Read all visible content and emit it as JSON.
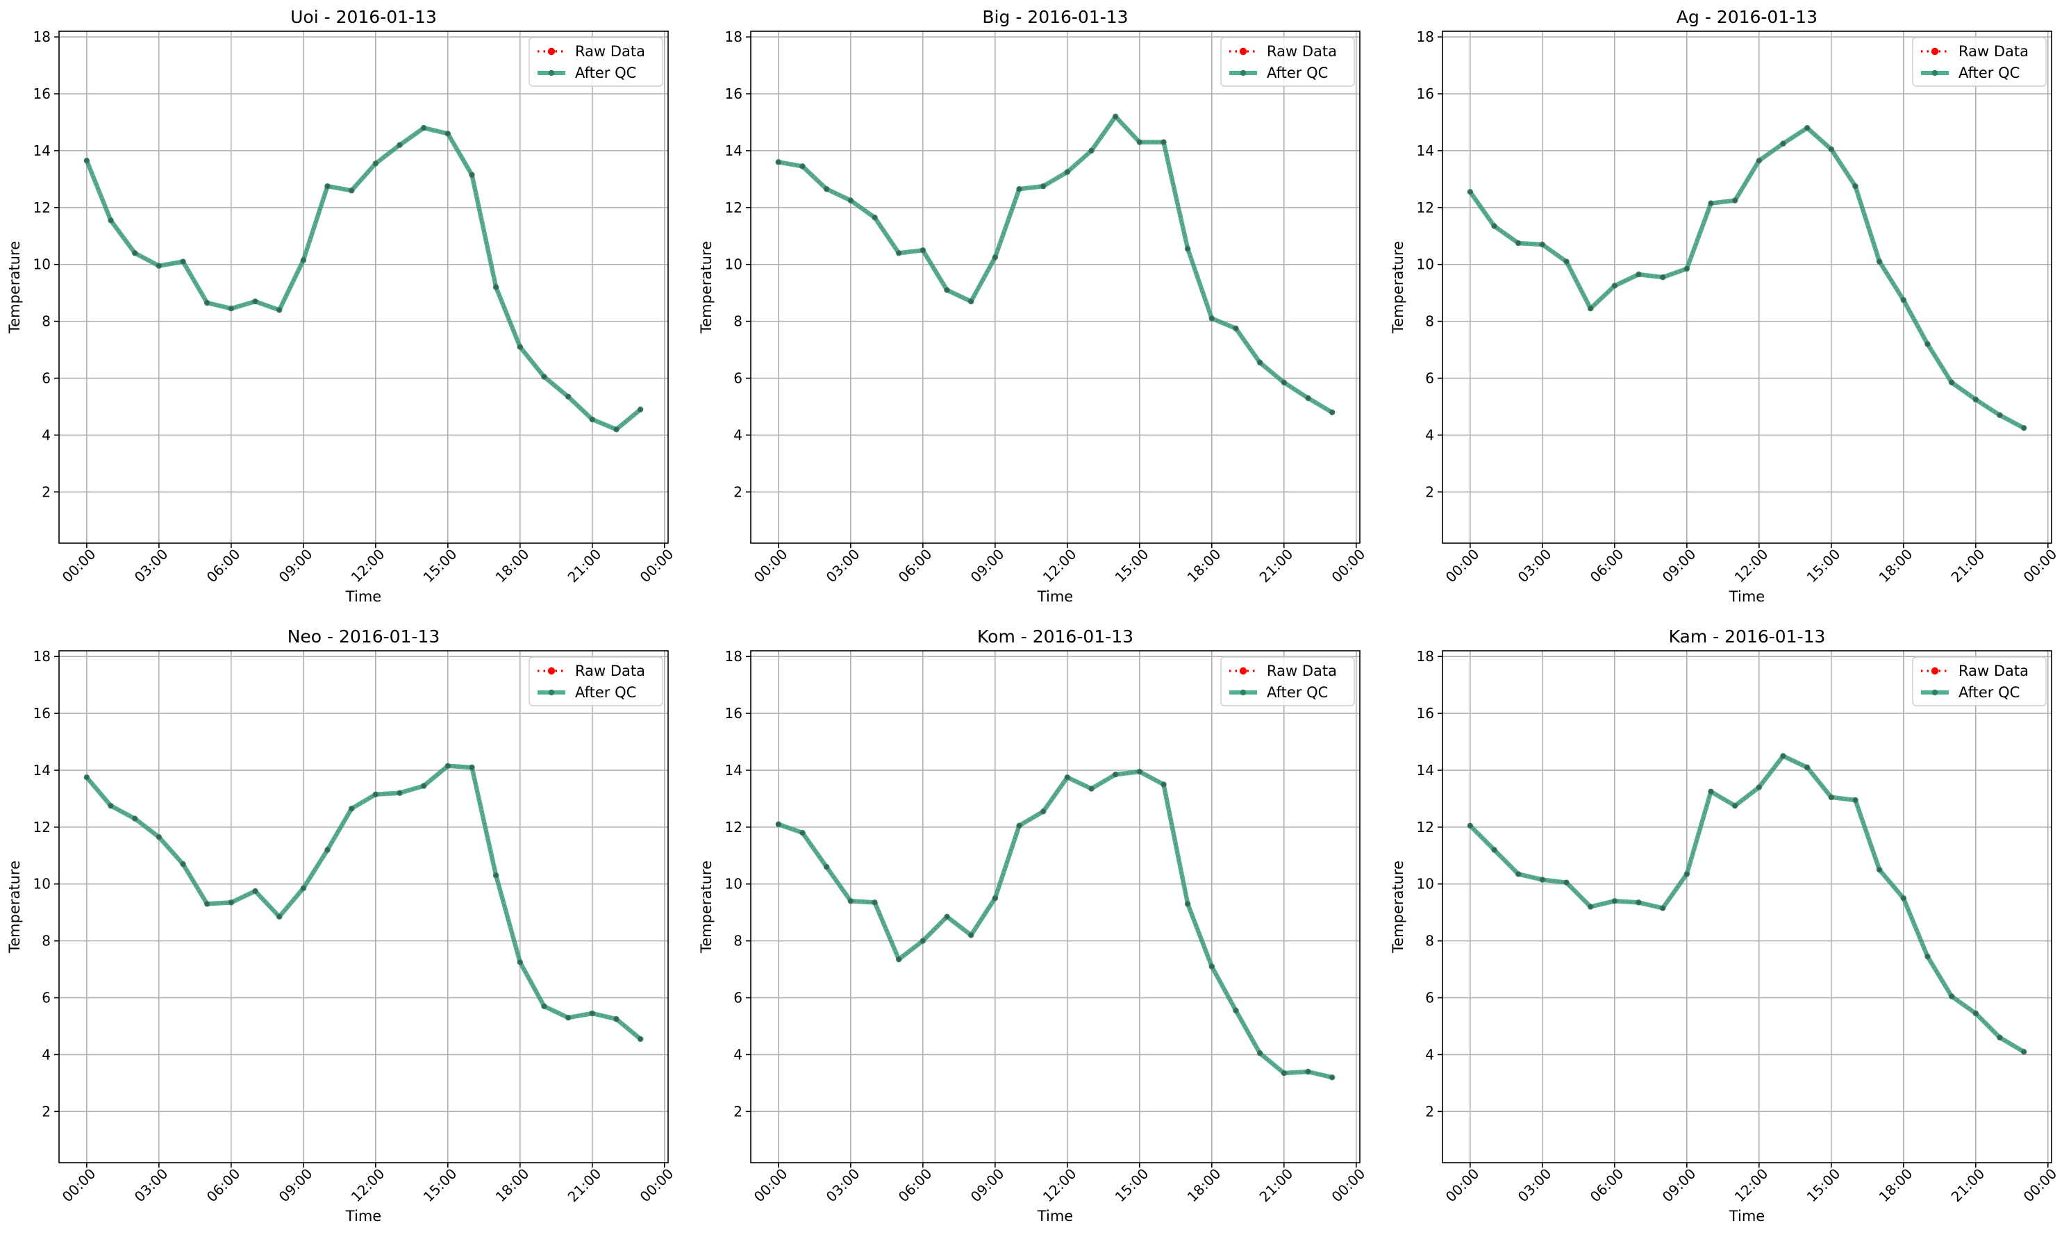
{
  "chart_data": [
    {
      "type": "line",
      "title": "Uoi - 2016-01-13",
      "xlabel": "Time",
      "ylabel": "Temperature",
      "ylim": [
        0.2,
        18.2
      ],
      "yticks": [
        2,
        4,
        6,
        8,
        10,
        12,
        14,
        16,
        18
      ],
      "xlim": [
        -1.15,
        24.15
      ],
      "xticks": [
        0,
        3,
        6,
        9,
        12,
        15,
        18,
        21,
        24
      ],
      "xtick_labels": [
        "00:00",
        "03:00",
        "06:00",
        "09:00",
        "12:00",
        "15:00",
        "18:00",
        "21:00",
        "00:00"
      ],
      "x": [
        0,
        1,
        2,
        3,
        4,
        5,
        6,
        7,
        8,
        9,
        10,
        11,
        12,
        13,
        14,
        15,
        16,
        17,
        18,
        19,
        20,
        21,
        22,
        23
      ],
      "x_unit": "hour of 2016-01-13",
      "grid": true,
      "legend": "upper right",
      "series": [
        {
          "name": "Raw Data",
          "color": "#ff0000",
          "style": "dotted",
          "values": [
            13.65,
            11.55,
            10.4,
            9.95,
            10.1,
            8.65,
            8.45,
            8.7,
            8.4,
            10.15,
            12.75,
            12.6,
            13.55,
            14.2,
            14.8,
            14.6,
            13.15,
            9.2,
            7.1,
            6.05,
            5.35,
            4.55,
            4.2,
            4.9
          ]
        },
        {
          "name": "After QC",
          "color": "#2a9d7a",
          "style": "solid",
          "values": [
            13.65,
            11.55,
            10.4,
            9.95,
            10.1,
            8.65,
            8.45,
            8.7,
            8.4,
            10.15,
            12.75,
            12.6,
            13.55,
            14.2,
            14.8,
            14.6,
            13.15,
            9.2,
            7.1,
            6.05,
            5.35,
            4.55,
            4.2,
            4.9
          ]
        }
      ]
    },
    {
      "type": "line",
      "title": "Big - 2016-01-13",
      "xlabel": "Time",
      "ylabel": "Temperature",
      "ylim": [
        0.2,
        18.2
      ],
      "yticks": [
        2,
        4,
        6,
        8,
        10,
        12,
        14,
        16,
        18
      ],
      "xlim": [
        -1.15,
        24.15
      ],
      "xticks": [
        0,
        3,
        6,
        9,
        12,
        15,
        18,
        21,
        24
      ],
      "xtick_labels": [
        "00:00",
        "03:00",
        "06:00",
        "09:00",
        "12:00",
        "15:00",
        "18:00",
        "21:00",
        "00:00"
      ],
      "x": [
        0,
        1,
        2,
        3,
        4,
        5,
        6,
        7,
        8,
        9,
        10,
        11,
        12,
        13,
        14,
        15,
        16,
        17,
        18,
        19,
        20,
        21,
        22,
        23
      ],
      "x_unit": "hour of 2016-01-13",
      "grid": true,
      "legend": "upper right",
      "series": [
        {
          "name": "Raw Data",
          "color": "#ff0000",
          "style": "dotted",
          "values": [
            13.6,
            13.45,
            12.65,
            12.25,
            11.65,
            10.4,
            10.5,
            9.1,
            8.7,
            10.25,
            12.65,
            12.75,
            13.25,
            14.0,
            15.2,
            14.3,
            14.3,
            10.55,
            8.1,
            7.75,
            6.55,
            5.85,
            5.3,
            4.8
          ]
        },
        {
          "name": "After QC",
          "color": "#2a9d7a",
          "style": "solid",
          "values": [
            13.6,
            13.45,
            12.65,
            12.25,
            11.65,
            10.4,
            10.5,
            9.1,
            8.7,
            10.25,
            12.65,
            12.75,
            13.25,
            14.0,
            15.2,
            14.3,
            14.3,
            10.55,
            8.1,
            7.75,
            6.55,
            5.85,
            5.3,
            4.8
          ]
        }
      ]
    },
    {
      "type": "line",
      "title": "Ag - 2016-01-13",
      "xlabel": "Time",
      "ylabel": "Temperature",
      "ylim": [
        0.2,
        18.2
      ],
      "yticks": [
        2,
        4,
        6,
        8,
        10,
        12,
        14,
        16,
        18
      ],
      "xlim": [
        -1.15,
        24.15
      ],
      "xticks": [
        0,
        3,
        6,
        9,
        12,
        15,
        18,
        21,
        24
      ],
      "xtick_labels": [
        "00:00",
        "03:00",
        "06:00",
        "09:00",
        "12:00",
        "15:00",
        "18:00",
        "21:00",
        "00:00"
      ],
      "x": [
        0,
        1,
        2,
        3,
        4,
        5,
        6,
        7,
        8,
        9,
        10,
        11,
        12,
        13,
        14,
        15,
        16,
        17,
        18,
        19,
        20,
        21,
        22,
        23
      ],
      "x_unit": "hour of 2016-01-13",
      "grid": true,
      "legend": "upper right",
      "series": [
        {
          "name": "Raw Data",
          "color": "#ff0000",
          "style": "dotted",
          "values": [
            12.55,
            11.35,
            10.75,
            10.7,
            10.1,
            8.45,
            9.25,
            9.65,
            9.55,
            9.85,
            12.15,
            12.25,
            13.65,
            14.25,
            14.8,
            14.05,
            12.75,
            10.1,
            8.75,
            7.2,
            5.85,
            5.25,
            4.7,
            4.25
          ]
        },
        {
          "name": "After QC",
          "color": "#2a9d7a",
          "style": "solid",
          "values": [
            12.55,
            11.35,
            10.75,
            10.7,
            10.1,
            8.45,
            9.25,
            9.65,
            9.55,
            9.85,
            12.15,
            12.25,
            13.65,
            14.25,
            14.8,
            14.05,
            12.75,
            10.1,
            8.75,
            7.2,
            5.85,
            5.25,
            4.7,
            4.25
          ]
        }
      ]
    },
    {
      "type": "line",
      "title": "Neo - 2016-01-13",
      "xlabel": "Time",
      "ylabel": "Temperature",
      "ylim": [
        0.2,
        18.2
      ],
      "yticks": [
        2,
        4,
        6,
        8,
        10,
        12,
        14,
        16,
        18
      ],
      "xlim": [
        -1.15,
        24.15
      ],
      "xticks": [
        0,
        3,
        6,
        9,
        12,
        15,
        18,
        21,
        24
      ],
      "xtick_labels": [
        "00:00",
        "03:00",
        "06:00",
        "09:00",
        "12:00",
        "15:00",
        "18:00",
        "21:00",
        "00:00"
      ],
      "x": [
        0,
        1,
        2,
        3,
        4,
        5,
        6,
        7,
        8,
        9,
        10,
        11,
        12,
        13,
        14,
        15,
        16,
        17,
        18,
        19,
        20,
        21,
        22,
        23
      ],
      "x_unit": "hour of 2016-01-13",
      "grid": true,
      "legend": "upper right",
      "series": [
        {
          "name": "Raw Data",
          "color": "#ff0000",
          "style": "dotted",
          "values": [
            13.75,
            12.75,
            12.3,
            11.65,
            10.7,
            9.3,
            9.35,
            9.75,
            8.85,
            9.85,
            11.2,
            12.65,
            13.15,
            13.2,
            13.45,
            14.15,
            14.1,
            10.3,
            7.25,
            5.7,
            5.3,
            5.45,
            5.25,
            4.55
          ]
        },
        {
          "name": "After QC",
          "color": "#2a9d7a",
          "style": "solid",
          "values": [
            13.75,
            12.75,
            12.3,
            11.65,
            10.7,
            9.3,
            9.35,
            9.75,
            8.85,
            9.85,
            11.2,
            12.65,
            13.15,
            13.2,
            13.45,
            14.15,
            14.1,
            10.3,
            7.25,
            5.7,
            5.3,
            5.45,
            5.25,
            4.55
          ]
        }
      ]
    },
    {
      "type": "line",
      "title": "Kom - 2016-01-13",
      "xlabel": "Time",
      "ylabel": "Temperature",
      "ylim": [
        0.2,
        18.2
      ],
      "yticks": [
        2,
        4,
        6,
        8,
        10,
        12,
        14,
        16,
        18
      ],
      "xlim": [
        -1.15,
        24.15
      ],
      "xticks": [
        0,
        3,
        6,
        9,
        12,
        15,
        18,
        21,
        24
      ],
      "xtick_labels": [
        "00:00",
        "03:00",
        "06:00",
        "09:00",
        "12:00",
        "15:00",
        "18:00",
        "21:00",
        "00:00"
      ],
      "x": [
        0,
        1,
        2,
        3,
        4,
        5,
        6,
        7,
        8,
        9,
        10,
        11,
        12,
        13,
        14,
        15,
        16,
        17,
        18,
        19,
        20,
        21,
        22,
        23
      ],
      "x_unit": "hour of 2016-01-13",
      "grid": true,
      "legend": "upper right",
      "series": [
        {
          "name": "Raw Data",
          "color": "#ff0000",
          "style": "dotted",
          "values": [
            12.1,
            11.8,
            10.6,
            9.4,
            9.35,
            7.35,
            8.0,
            8.85,
            8.2,
            9.5,
            12.05,
            12.55,
            13.75,
            13.35,
            13.85,
            13.95,
            13.5,
            9.3,
            7.1,
            5.55,
            4.05,
            3.35,
            3.4,
            3.2
          ]
        },
        {
          "name": "After QC",
          "color": "#2a9d7a",
          "style": "solid",
          "values": [
            12.1,
            11.8,
            10.6,
            9.4,
            9.35,
            7.35,
            8.0,
            8.85,
            8.2,
            9.5,
            12.05,
            12.55,
            13.75,
            13.35,
            13.85,
            13.95,
            13.5,
            9.3,
            7.1,
            5.55,
            4.05,
            3.35,
            3.4,
            3.2
          ]
        }
      ]
    },
    {
      "type": "line",
      "title": "Kam - 2016-01-13",
      "xlabel": "Time",
      "ylabel": "Temperature",
      "ylim": [
        0.2,
        18.2
      ],
      "yticks": [
        2,
        4,
        6,
        8,
        10,
        12,
        14,
        16,
        18
      ],
      "xlim": [
        -1.15,
        24.15
      ],
      "xticks": [
        0,
        3,
        6,
        9,
        12,
        15,
        18,
        21,
        24
      ],
      "xtick_labels": [
        "00:00",
        "03:00",
        "06:00",
        "09:00",
        "12:00",
        "15:00",
        "18:00",
        "21:00",
        "00:00"
      ],
      "x": [
        0,
        1,
        2,
        3,
        4,
        5,
        6,
        7,
        8,
        9,
        10,
        11,
        12,
        13,
        14,
        15,
        16,
        17,
        18,
        19,
        20,
        21,
        22,
        23
      ],
      "x_unit": "hour of 2016-01-13",
      "grid": true,
      "legend": "upper right",
      "series": [
        {
          "name": "Raw Data",
          "color": "#ff0000",
          "style": "dotted",
          "values": [
            12.05,
            11.2,
            10.35,
            10.15,
            10.05,
            9.2,
            9.4,
            9.35,
            9.15,
            10.35,
            13.25,
            12.75,
            13.4,
            14.5,
            14.1,
            13.05,
            12.95,
            10.5,
            9.5,
            7.45,
            6.05,
            5.45,
            4.6,
            4.1
          ]
        },
        {
          "name": "After QC",
          "color": "#2a9d7a",
          "style": "solid",
          "values": [
            12.05,
            11.2,
            10.35,
            10.15,
            10.05,
            9.2,
            9.4,
            9.35,
            9.15,
            10.35,
            13.25,
            12.75,
            13.4,
            14.5,
            14.1,
            13.05,
            12.95,
            10.5,
            9.5,
            7.45,
            6.05,
            5.45,
            4.6,
            4.1
          ]
        }
      ]
    }
  ]
}
